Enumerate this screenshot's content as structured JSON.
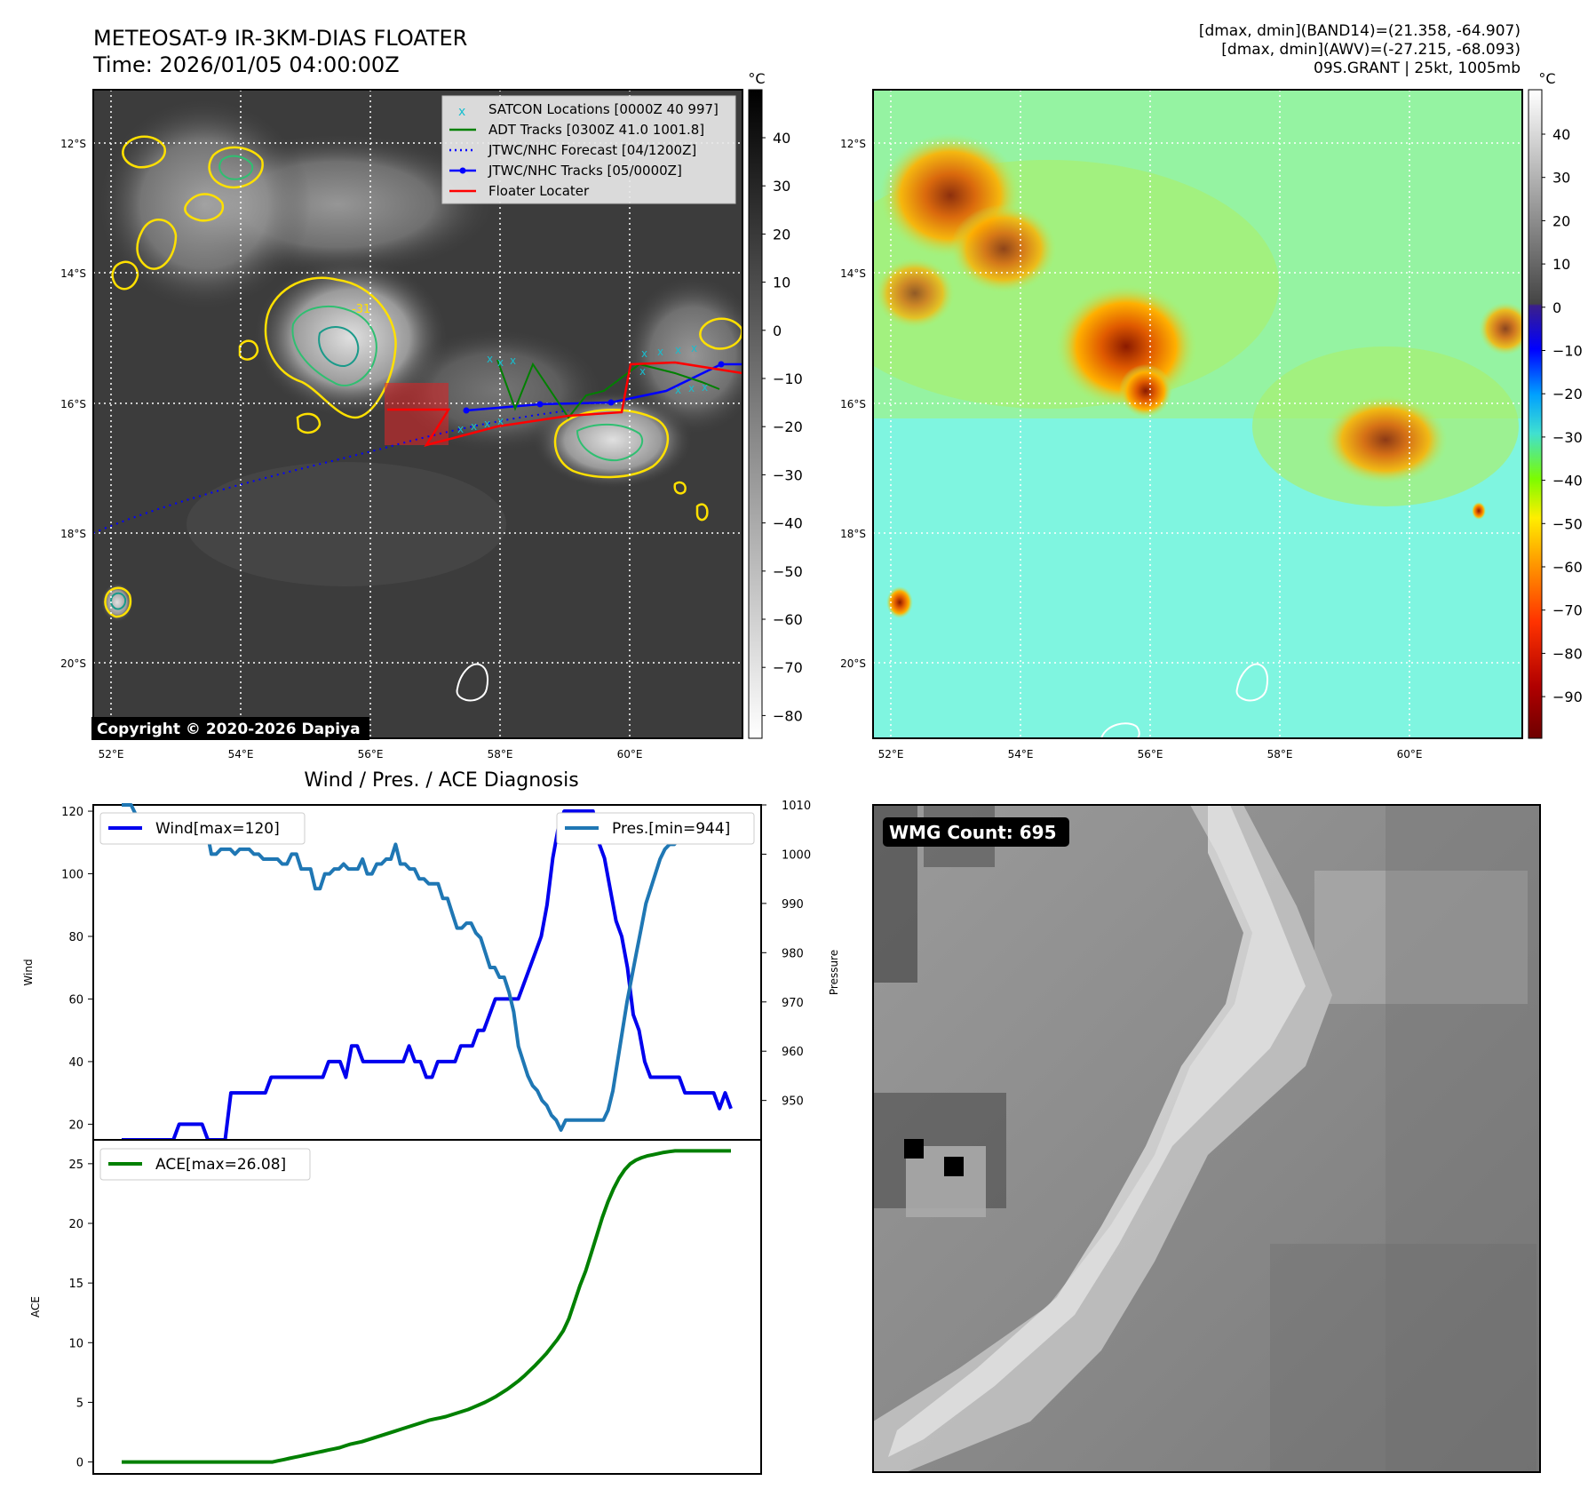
{
  "header": {
    "title_line1": "METEOSAT-9 IR-3KM-DIAS FLOATER",
    "title_line2": "Time: 2026/01/05 04:00:00Z",
    "info_line1": "[dmax, dmin](BAND14)=(21.358, -64.907)",
    "info_line2": "[dmax, dmin](AWV)=(-27.215, -68.093)",
    "info_line3": "09S.GRANT | 25kt, 1005mb"
  },
  "copyright": "Copyright © 2020-2026 Dapiya",
  "map": {
    "lat_labels": [
      "12°S",
      "14°S",
      "16°S",
      "18°S",
      "20°S"
    ],
    "lon_labels": [
      "52°E",
      "54°E",
      "56°E",
      "58°E",
      "60°E"
    ],
    "contour_label": "-31"
  },
  "legend": {
    "items": [
      {
        "label": "SATCON Locations [0000Z 40 997]",
        "color": "#17becf"
      },
      {
        "label": "ADT Tracks [0300Z 41.0 1001.8]",
        "color": "#008000"
      },
      {
        "label": "JTWC/NHC Forecast [04/1200Z]",
        "color": "#0000ff"
      },
      {
        "label": "JTWC/NHC Tracks [05/0000Z]",
        "color": "#0000ff"
      },
      {
        "label": "Floater Locater",
        "color": "#ff0000"
      }
    ]
  },
  "colorbar_left": {
    "unit": "°C",
    "ticks": [
      "40",
      "30",
      "20",
      "10",
      "0",
      "−10",
      "−20",
      "−30",
      "−40",
      "−50",
      "−60",
      "−70",
      "−80"
    ]
  },
  "colorbar_right": {
    "unit": "°C",
    "ticks": [
      "40",
      "30",
      "20",
      "10",
      "0",
      "−10",
      "−20",
      "−30",
      "−40",
      "−50",
      "−60",
      "−70",
      "−80",
      "−90"
    ]
  },
  "wmg": {
    "label": "WMG Count: 695"
  },
  "chart_data": [
    {
      "type": "line",
      "title": "Wind / Pres. / ACE Diagnosis",
      "ylabel": "Wind",
      "y2label": "Pressure",
      "ylim": [
        15,
        122
      ],
      "y2lim": [
        942,
        1010
      ],
      "yticks": [
        20,
        40,
        60,
        80,
        100,
        120
      ],
      "y2ticks": [
        950,
        960,
        970,
        980,
        990,
        1000,
        1010
      ],
      "series": [
        {
          "name": "Wind[max=120]",
          "color": "#0000ee",
          "values": [
            15,
            15,
            15,
            15,
            15,
            15,
            15,
            15,
            15,
            15,
            20,
            20,
            20,
            20,
            20,
            15,
            15,
            15,
            15,
            30,
            30,
            30,
            30,
            30,
            30,
            30,
            35,
            35,
            35,
            35,
            35,
            35,
            35,
            35,
            35,
            35,
            40,
            40,
            40,
            35,
            45,
            45,
            40,
            40,
            40,
            40,
            40,
            40,
            40,
            40,
            45,
            40,
            40,
            35,
            35,
            40,
            40,
            40,
            40,
            45,
            45,
            45,
            50,
            50,
            55,
            60,
            60,
            60,
            60,
            60,
            65,
            70,
            75,
            80,
            90,
            105,
            115,
            120,
            120,
            120,
            120,
            120,
            120,
            110,
            105,
            95,
            85,
            80,
            70,
            55,
            50,
            40,
            35,
            35,
            35,
            35,
            35,
            35,
            30,
            30,
            30,
            30,
            30,
            30,
            25,
            30,
            25
          ]
        },
        {
          "name": "Pres.[min=944]",
          "color": "#1f77b4",
          "values": [
            1010,
            1010,
            1010,
            1008,
            1008,
            1008,
            1008,
            1008,
            1008,
            1008,
            1006,
            1006,
            1006,
            1007,
            1007,
            1007,
            1007,
            1005,
            1005,
            1000,
            1000,
            1001,
            1001,
            1001,
            1000,
            1001,
            1001,
            1001,
            1000,
            1000,
            999,
            999,
            999,
            999,
            998,
            998,
            1000,
            1000,
            997,
            997,
            997,
            993,
            993,
            996,
            996,
            997,
            997,
            998,
            997,
            997,
            997,
            999,
            996,
            996,
            998,
            998,
            999,
            999,
            1002,
            998,
            998,
            997,
            997,
            995,
            995,
            994,
            994,
            994,
            991,
            991,
            988,
            985,
            985,
            986,
            986,
            984,
            983,
            980,
            977,
            977,
            975,
            975,
            972,
            968,
            961,
            958,
            955,
            953,
            952,
            950,
            949,
            947,
            946,
            944,
            946,
            946,
            946,
            946,
            946,
            946,
            946,
            946,
            946,
            948,
            952,
            958,
            964,
            970,
            975,
            980,
            985,
            990,
            993,
            996,
            999,
            1001,
            1002,
            1002,
            1003,
            1003,
            1003,
            1003,
            1003,
            1003,
            1005,
            1006,
            1006,
            1006,
            1006,
            1006
          ]
        }
      ]
    },
    {
      "type": "line",
      "ylabel": "ACE",
      "ylim": [
        -1,
        27
      ],
      "yticks": [
        0,
        5,
        10,
        15,
        20,
        25
      ],
      "series": [
        {
          "name": "ACE[max=26.08]",
          "color": "#008000",
          "values": [
            0,
            0,
            0,
            0,
            0,
            0,
            0,
            0,
            0,
            0,
            0,
            0,
            0,
            0,
            0,
            0,
            0,
            0,
            0,
            0,
            0,
            0,
            0,
            0,
            0,
            0,
            0,
            0,
            0.1,
            0.2,
            0.3,
            0.4,
            0.5,
            0.6,
            0.7,
            0.8,
            0.9,
            1.0,
            1.1,
            1.2,
            1.35,
            1.5,
            1.6,
            1.7,
            1.85,
            2.0,
            2.15,
            2.3,
            2.45,
            2.6,
            2.75,
            2.9,
            3.05,
            3.2,
            3.35,
            3.5,
            3.6,
            3.7,
            3.8,
            3.95,
            4.1,
            4.25,
            4.4,
            4.6,
            4.8,
            5.0,
            5.25,
            5.5,
            5.8,
            6.1,
            6.45,
            6.8,
            7.2,
            7.65,
            8.1,
            8.6,
            9.1,
            9.7,
            10.3,
            11.0,
            12.0,
            13.4,
            14.8,
            16.0,
            17.5,
            19.0,
            20.5,
            21.8,
            22.9,
            23.8,
            24.5,
            25.0,
            25.3,
            25.5,
            25.65,
            25.75,
            25.85,
            25.95,
            26.02,
            26.08,
            26.08,
            26.08,
            26.08,
            26.08,
            26.08,
            26.08,
            26.08,
            26.08,
            26.08,
            26.08
          ]
        }
      ]
    }
  ]
}
